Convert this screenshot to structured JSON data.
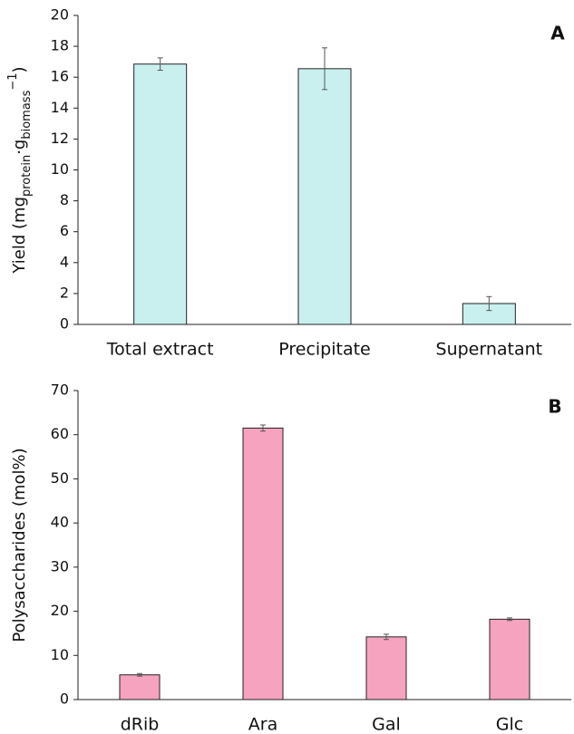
{
  "chart_data": [
    {
      "type": "bar",
      "panel": "A",
      "ylabel": [
        {
          "text": "Yield (mg"
        },
        {
          "sub": "protein"
        },
        {
          "text": "·g"
        },
        {
          "sub": "biomass"
        },
        {
          "sup": "−1"
        },
        {
          "text": ")"
        }
      ],
      "categories": [
        "Total extract",
        "Precipitate",
        "Supernatant"
      ],
      "values": [
        16.85,
        16.55,
        1.35
      ],
      "errors": [
        0.4,
        1.35,
        0.45
      ],
      "color": "#c9f0ee",
      "ylim": [
        0,
        20
      ],
      "yticks": [
        0,
        2,
        4,
        6,
        8,
        10,
        12,
        14,
        16,
        18,
        20
      ]
    },
    {
      "type": "bar",
      "panel": "B",
      "ylabel": [
        {
          "text": "Polysaccharides (mol%)"
        }
      ],
      "categories": [
        "dRib",
        "Ara",
        "Gal",
        "Glc"
      ],
      "values": [
        5.6,
        61.5,
        14.2,
        18.2
      ],
      "errors": [
        0.3,
        0.7,
        0.6,
        0.3
      ],
      "color": "#f6a3c0",
      "ylim": [
        0,
        70
      ],
      "yticks": [
        0,
        10,
        20,
        30,
        40,
        50,
        60,
        70
      ]
    }
  ]
}
